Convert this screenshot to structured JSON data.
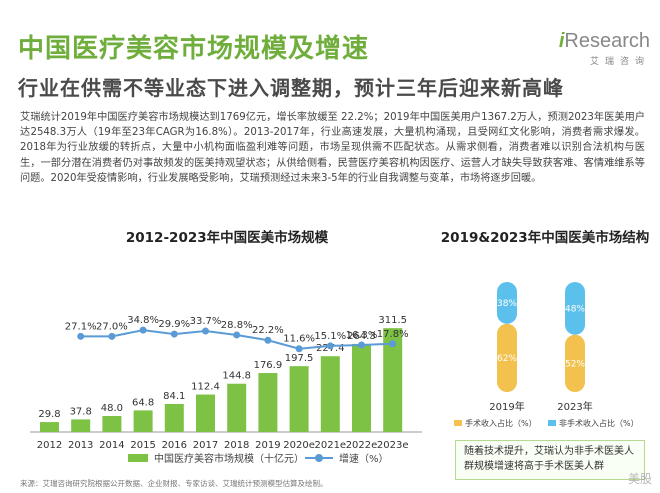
{
  "header": {
    "title": "中国医疗美容市场规模及增速",
    "subtitle": "行业在供需不等业态下进入调整期，预计三年后迎来新高峰",
    "logo_i": "i",
    "logo_text": "Research",
    "logo_sub": "艾瑞咨询"
  },
  "body_text": "艾瑞统计2019年中国医疗美容市场规模达到1769亿元，增长率放缓至 22.2%；2019年中国医美用户1367.2万人，预测2023年医美用户达2548.3万人（19年至23年CAGR为16.8%）。2013-2017年，行业高速发展，大量机构涌现，且受网红文化影响，消费者需求爆发。2018年为行业放缓的转折点，大量中小机构面临盈利难等问题，市场呈现供需不匹配状态。从需求侧看，消费者难以识别合法机构与医生，一部分潜在消费者仍对事故频发的医美持观望状态；从供给侧看，民营医疗美容机构因医疗、运营人才缺失导致获客难、客情难维系等问题。2020年受疫情影响，行业发展略受影响，艾瑞预测经过未来3-5年的行业自我调整与变革，市场将逐步回暖。",
  "chart_data": [
    {
      "type": "bar",
      "title": "2012-2023年中国医美市场规模",
      "categories": [
        "2012",
        "2013",
        "2014",
        "2015",
        "2016",
        "2017",
        "2018",
        "2019",
        "2020e",
        "2021e",
        "2022e",
        "2023e"
      ],
      "series": [
        {
          "name": "中国医疗美容市场规模（十亿元）",
          "type": "bar",
          "values": [
            29.8,
            37.8,
            48.0,
            64.8,
            84.1,
            112.4,
            144.8,
            176.9,
            197.5,
            227.4,
            264.3,
            311.5
          ],
          "labels": [
            "29.8",
            "37.8",
            "48.0",
            "64.8",
            "84.1",
            "112.4",
            "144.8",
            "176.9",
            "197.5",
            "227.4",
            "264.3",
            "311.5"
          ]
        },
        {
          "name": "增速（%）",
          "type": "line",
          "values": [
            null,
            27.1,
            27.0,
            34.8,
            29.9,
            33.7,
            28.8,
            22.2,
            11.6,
            15.1,
            16.3,
            17.8
          ],
          "labels": [
            "",
            "27.1%",
            "27.0%",
            "34.8%",
            "29.9%",
            "33.7%",
            "28.8%",
            "22.2%",
            "11.6%",
            "15.1%",
            "16.3%",
            "17.8%"
          ]
        }
      ],
      "ylim": [
        0,
        330
      ],
      "y2lim": [
        0,
        60
      ],
      "legend_bar": "中国医疗美容市场规模（十亿元）",
      "legend_line": "增速（%）"
    },
    {
      "type": "bar",
      "title": "2019&2023年中国医美市场结构",
      "categories": [
        "2019年",
        "2023年"
      ],
      "series": [
        {
          "name": "手术收入占比（%）",
          "values": [
            62,
            52
          ],
          "labels": [
            "62%",
            "52%"
          ]
        },
        {
          "name": "非手术收入占比（%）",
          "values": [
            38,
            48
          ],
          "labels": [
            "38%",
            "48%"
          ]
        }
      ],
      "legend_a": "手术收入占比（%）",
      "legend_b": "非手术收入占比（%）"
    }
  ],
  "callout": "随着技术提升，艾瑞认为非手术医美人群规模增速将高于手术医美人群",
  "source": "来源：艾瑞咨询研究院根据公开数据、企业财报、专家访谈、艾瑞统计预测模型估算及绘制。",
  "watermark": "美股",
  "colors": {
    "bar": "#7dc245",
    "line": "#5b9bd5",
    "title": "#6fae3c",
    "surgical": "#f2c14e",
    "nonsurgical": "#5bc0eb"
  }
}
